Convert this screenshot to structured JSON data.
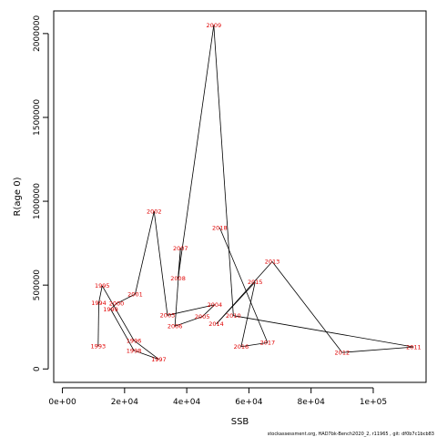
{
  "chart_data": {
    "type": "line",
    "xlabel": "SSB",
    "ylabel": "R(age 0)",
    "xlim": [
      -2800,
      117000
    ],
    "ylim": [
      -80000,
      2135000
    ],
    "x_ticks": [
      {
        "value": 0,
        "label": "0e+00"
      },
      {
        "value": 20000,
        "label": "2e+04"
      },
      {
        "value": 40000,
        "label": "4e+04"
      },
      {
        "value": 60000,
        "label": "6e+04"
      },
      {
        "value": 80000,
        "label": "8e+04"
      },
      {
        "value": 100000,
        "label": "1e+05"
      }
    ],
    "y_ticks": [
      {
        "value": 0,
        "label": "0"
      },
      {
        "value": 500000,
        "label": "500000"
      },
      {
        "value": 1000000,
        "label": "1000000"
      },
      {
        "value": 1500000,
        "label": "1500000"
      },
      {
        "value": 2000000,
        "label": "2000000"
      }
    ],
    "line_color": "#000000",
    "label_color": "#e00000",
    "points": [
      {
        "year": "1993",
        "ssb": 11500,
        "r": 135000
      },
      {
        "year": "1994",
        "ssb": 11700,
        "r": 395000
      },
      {
        "year": "1995",
        "ssb": 12800,
        "r": 496000
      },
      {
        "year": "1996",
        "ssb": 23000,
        "r": 170000
      },
      {
        "year": "1997",
        "ssb": 31000,
        "r": 58000
      },
      {
        "year": "1998",
        "ssb": 23000,
        "r": 110000
      },
      {
        "year": "1999",
        "ssb": 15500,
        "r": 357000
      },
      {
        "year": "2000",
        "ssb": 17400,
        "r": 390000
      },
      {
        "year": "2001",
        "ssb": 23400,
        "r": 446000
      },
      {
        "year": "2002",
        "ssb": 29500,
        "r": 940000
      },
      {
        "year": "2003",
        "ssb": 33800,
        "r": 320000
      },
      {
        "year": "2004",
        "ssb": 49000,
        "r": 383000
      },
      {
        "year": "2005",
        "ssb": 45000,
        "r": 312000
      },
      {
        "year": "2006",
        "ssb": 36200,
        "r": 255000
      },
      {
        "year": "2007",
        "ssb": 38000,
        "r": 720000
      },
      {
        "year": "2008",
        "ssb": 37200,
        "r": 540000
      },
      {
        "year": "2009",
        "ssb": 48700,
        "r": 2050000
      },
      {
        "year": "2010",
        "ssb": 55000,
        "r": 318000
      },
      {
        "year": "2011",
        "ssb": 113000,
        "r": 131000
      },
      {
        "year": "2012",
        "ssb": 90000,
        "r": 98000
      },
      {
        "year": "2013",
        "ssb": 67500,
        "r": 640000
      },
      {
        "year": "2014",
        "ssb": 49500,
        "r": 268000
      },
      {
        "year": "2015",
        "ssb": 62000,
        "r": 518000
      },
      {
        "year": "2016",
        "ssb": 57500,
        "r": 133000
      },
      {
        "year": "2017",
        "ssb": 66000,
        "r": 157000
      },
      {
        "year": "2018",
        "ssb": 50600,
        "r": 843000
      }
    ]
  },
  "footer": "stockassessment.org, HAD7bk-Bench2020_2, r11965 , git: df0b7c1bcb83"
}
